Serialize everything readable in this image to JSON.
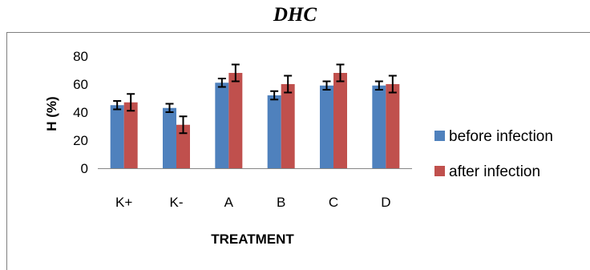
{
  "chart_data": {
    "type": "bar",
    "title": "DHC",
    "xlabel": "TREATMENT",
    "ylabel": "H (%)",
    "categories": [
      "K+",
      "K-",
      "A",
      "B",
      "C",
      "D"
    ],
    "ylim": [
      0,
      80
    ],
    "yticks": [
      0,
      20,
      40,
      60,
      80
    ],
    "grid": false,
    "legend_position": "right",
    "series": [
      {
        "name": "before infection",
        "color": "#4f81bd",
        "values": [
          45,
          43,
          61,
          52,
          59,
          59
        ],
        "errors": [
          3,
          3,
          3,
          3,
          3,
          3
        ]
      },
      {
        "name": "after infection",
        "color": "#c0504d",
        "values": [
          47,
          31,
          68,
          60,
          68,
          60
        ],
        "errors": [
          6,
          6,
          6,
          6,
          6,
          6
        ]
      }
    ]
  }
}
